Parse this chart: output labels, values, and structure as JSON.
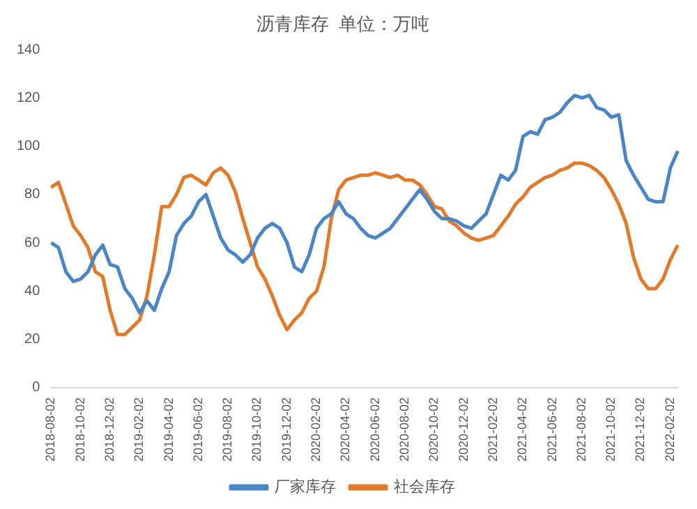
{
  "chart_data": {
    "type": "line",
    "title": "沥青库存  单位：万吨",
    "categories": [
      "2018-08-02",
      null,
      null,
      null,
      "2018-10-02",
      null,
      null,
      null,
      "2018-12-02",
      null,
      null,
      null,
      "2019-02-02",
      null,
      null,
      null,
      "2019-04-02",
      null,
      null,
      null,
      "2019-06-02",
      null,
      null,
      null,
      "2019-08-02",
      null,
      null,
      null,
      "2019-10-02",
      null,
      null,
      null,
      "2019-12-02",
      null,
      null,
      null,
      "2020-02-02",
      null,
      null,
      null,
      "2020-04-02",
      null,
      null,
      null,
      "2020-06-02",
      null,
      null,
      null,
      "2020-08-02",
      null,
      null,
      null,
      "2020-10-02",
      null,
      null,
      null,
      "2020-12-02",
      null,
      null,
      null,
      "2021-02-02",
      null,
      null,
      null,
      "2021-04-02",
      null,
      null,
      null,
      "2021-06-02",
      null,
      null,
      null,
      "2021-08-02",
      null,
      null,
      null,
      "2021-10-02",
      null,
      null,
      null,
      "2021-12-02",
      null,
      null,
      null,
      "2022-02-02",
      null
    ],
    "series": [
      {
        "name": "厂家库存",
        "color": "#4a86c5",
        "values": [
          60,
          58,
          48,
          44,
          45,
          48,
          55,
          59,
          51,
          50,
          41,
          37,
          31,
          36,
          32,
          41,
          48,
          63,
          68,
          71,
          77,
          80,
          71,
          62,
          57,
          55,
          52,
          55,
          62,
          66,
          68,
          66,
          60,
          50,
          48,
          55,
          66,
          70,
          72,
          77,
          72,
          70,
          66,
          63,
          62,
          64,
          66,
          70,
          74,
          78,
          82,
          78,
          73,
          70,
          70,
          69,
          67,
          66,
          69,
          72,
          80,
          88,
          86,
          90,
          104,
          106,
          105,
          111,
          112,
          114,
          118,
          121,
          120,
          121,
          116,
          115,
          112,
          113,
          94,
          88,
          83,
          78,
          77,
          77,
          91,
          98
        ]
      },
      {
        "name": "社会库存",
        "color": "#e07b2c",
        "values": [
          83,
          85,
          76,
          67,
          63,
          58,
          48,
          46,
          32,
          22,
          22,
          25,
          28,
          38,
          55,
          75,
          75,
          80,
          87,
          88,
          86,
          84,
          89,
          91,
          88,
          81,
          70,
          60,
          50,
          45,
          38,
          30,
          24,
          28,
          31,
          37,
          40,
          50,
          70,
          82,
          86,
          87,
          88,
          88,
          89,
          88,
          87,
          88,
          86,
          86,
          84,
          80,
          75,
          74,
          69,
          67,
          64,
          62,
          61,
          62,
          63,
          67,
          71,
          76,
          79,
          83,
          85,
          87,
          88,
          90,
          91,
          93,
          93,
          92,
          90,
          87,
          82,
          76,
          68,
          54,
          45,
          41,
          41,
          45,
          53,
          59
        ]
      }
    ],
    "ylim": [
      0,
      140
    ],
    "yticks": [
      0,
      20,
      40,
      60,
      80,
      100,
      120,
      140
    ],
    "grid": false,
    "legend": "bottom",
    "marker": "none",
    "line_style": "solid"
  }
}
